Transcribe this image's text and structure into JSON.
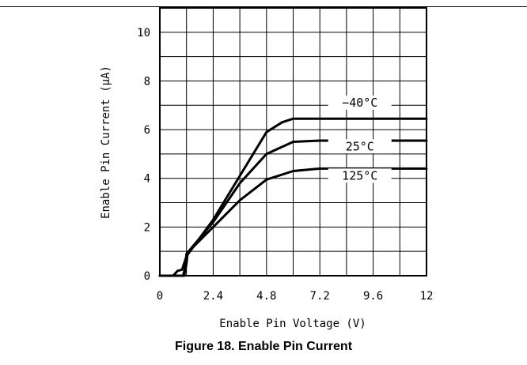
{
  "caption": "Figure 18. Enable Pin Current",
  "chart_data": {
    "type": "line",
    "xlabel": "Enable Pin Voltage (V)",
    "ylabel": "Enable Pin Current (μA)",
    "xlim": [
      0,
      12
    ],
    "ylim": [
      0,
      11
    ],
    "x_ticks": [
      "0",
      "2.4",
      "4.8",
      "7.2",
      "9.6",
      "12"
    ],
    "x_tick_values": [
      0,
      2.4,
      4.8,
      7.2,
      9.6,
      12
    ],
    "y_ticks": [
      "0",
      "2",
      "4",
      "6",
      "8",
      "10"
    ],
    "y_tick_values": [
      0,
      2,
      4,
      6,
      8,
      10
    ],
    "grid": true,
    "series": [
      {
        "name": "−40°C",
        "x": [
          0,
          0.6,
          0.8,
          1.0,
          1.2,
          2.4,
          3.6,
          4.8,
          5.5,
          6.0,
          7.2,
          8.4,
          9.6,
          12
        ],
        "y": [
          0,
          0,
          0.2,
          0.25,
          0.8,
          2.3,
          4.1,
          5.9,
          6.3,
          6.45,
          6.45,
          6.45,
          6.45,
          6.45
        ]
      },
      {
        "name": "25°C",
        "x": [
          0,
          1.05,
          1.15,
          1.2,
          2.4,
          3.6,
          4.8,
          6.0,
          7.2,
          8.4,
          9.6,
          12
        ],
        "y": [
          0,
          0,
          0.4,
          0.9,
          2.2,
          3.8,
          5.0,
          5.5,
          5.55,
          5.55,
          5.55,
          5.55
        ]
      },
      {
        "name": "125°C",
        "x": [
          0,
          1.1,
          1.2,
          1.25,
          2.4,
          3.6,
          4.8,
          6.0,
          7.2,
          8.4,
          9.6,
          12
        ],
        "y": [
          0,
          0,
          0.5,
          0.95,
          2.0,
          3.1,
          3.95,
          4.3,
          4.4,
          4.4,
          4.4,
          4.4
        ]
      }
    ]
  }
}
